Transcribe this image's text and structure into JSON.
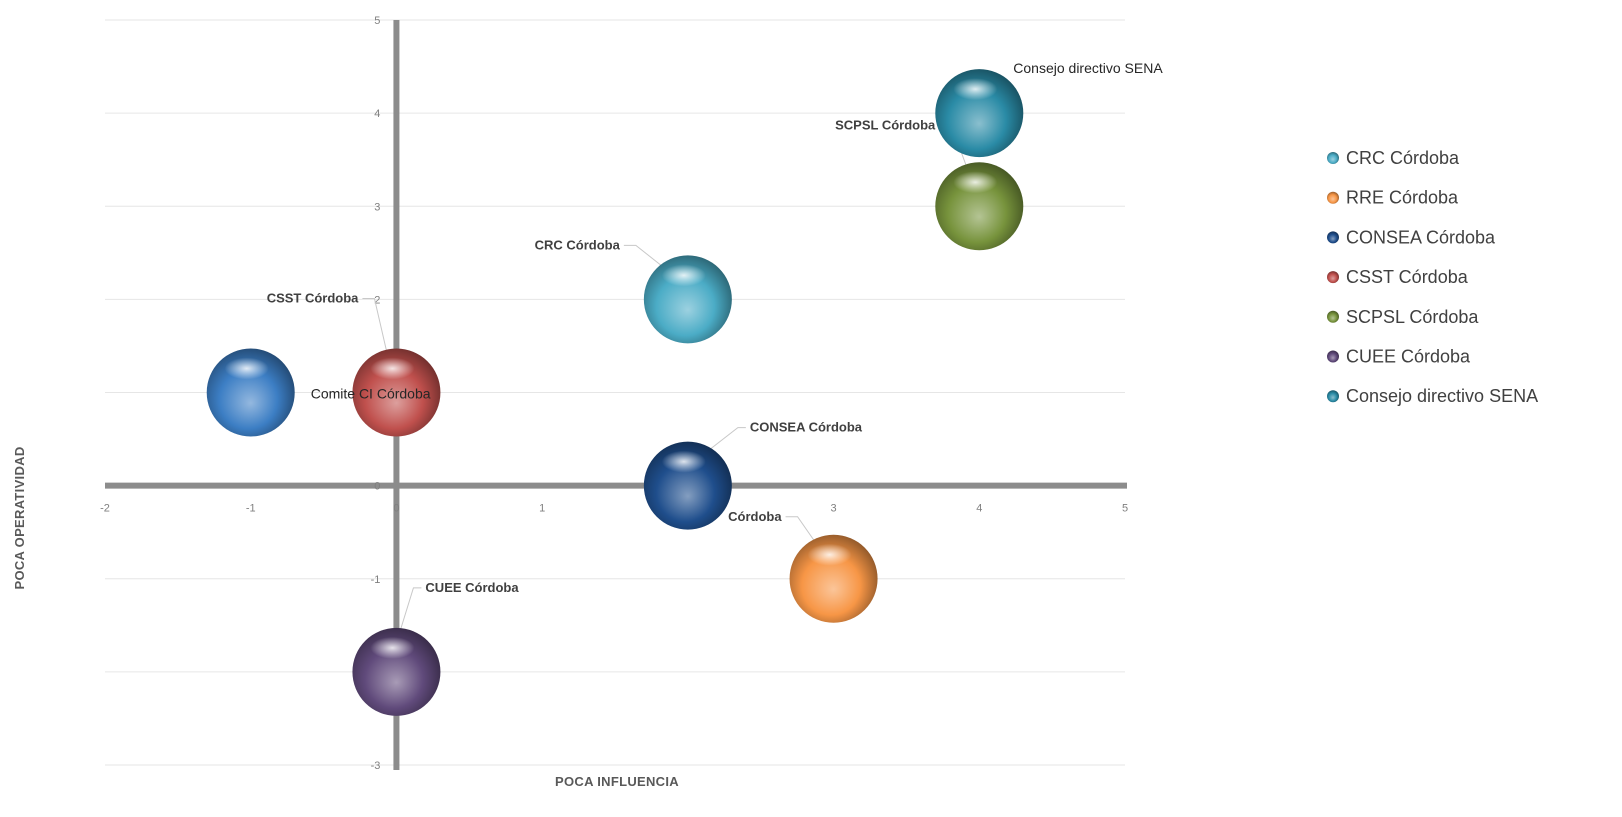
{
  "chart_data": {
    "type": "bubble",
    "xlabel": "POCA INFLUENCIA",
    "ylabel": "POCA OPERATIVIDAD",
    "xlim": [
      -2,
      5
    ],
    "ylim": [
      -3,
      5
    ],
    "x_ticks": [
      -2,
      -1,
      0,
      1,
      2,
      3,
      4,
      5
    ],
    "y_ticks": [
      -3,
      -2,
      -1,
      0,
      1,
      2,
      3,
      4,
      5
    ],
    "grid": "horizontal",
    "legend": "right",
    "series": [
      {
        "name": "CRC Córdoba",
        "x": 2,
        "y": 2,
        "label": "CRC Córdoba",
        "color": "#4bacc6"
      },
      {
        "name": "RRE Córdoba",
        "x": 3,
        "y": -1,
        "label": "Córdoba",
        "color": "#f79646"
      },
      {
        "name": "CONSEA Córdoba",
        "x": 2,
        "y": 0,
        "label": "CONSEA Córdoba",
        "color": "#1f4e8c"
      },
      {
        "name": "CSST Córdoba",
        "x": 0,
        "y": 1,
        "label": "CSST Córdoba",
        "color": "#c0504d"
      },
      {
        "name": "SCPSL Córdoba",
        "x": 4,
        "y": 3,
        "label": "SCPSL Córdoba",
        "color": "#77933c"
      },
      {
        "name": "CUEE Córdoba",
        "x": 0,
        "y": -2,
        "label": "CUEE Córdoba",
        "color": "#604a7b"
      },
      {
        "name": "Consejo directivo SENA",
        "x": 4,
        "y": 4,
        "label": "Consejo directivo SENA",
        "color": "#2a8ba6"
      }
    ],
    "extra_points": [
      {
        "x": -1,
        "y": 1,
        "label": "Comite CI Córdoba",
        "color": "#3c7ec4"
      }
    ]
  }
}
